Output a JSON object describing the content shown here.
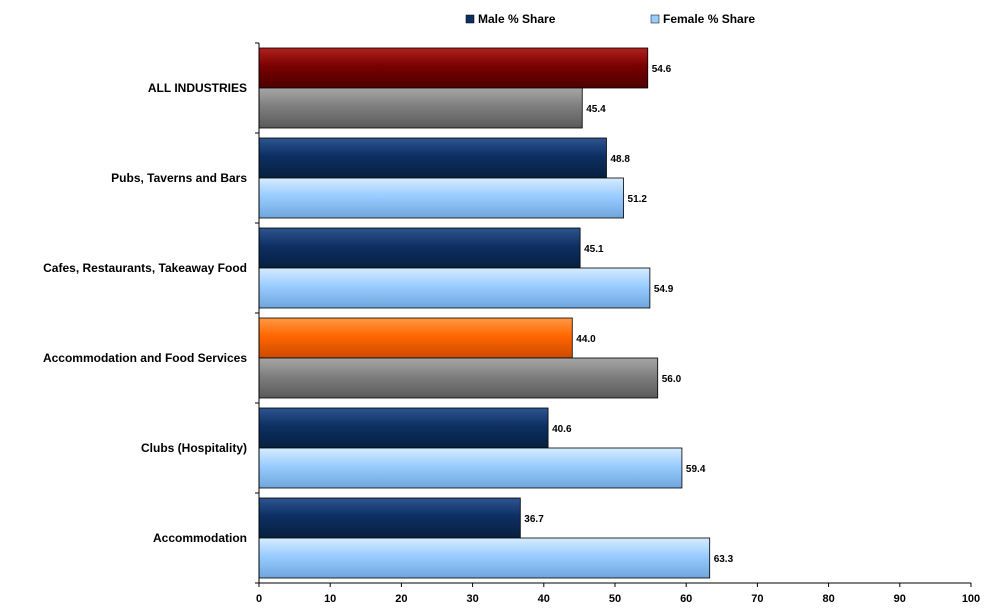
{
  "chart_data": {
    "type": "bar",
    "orientation": "horizontal",
    "categories": [
      "ALL INDUSTRIES",
      "Pubs, Taverns and Bars",
      "Cafes, Restaurants, Takeaway Food",
      "Accommodation and Food Services",
      "Clubs (Hospitality)",
      "Accommodation"
    ],
    "series": [
      {
        "name": "Male % Share",
        "values": [
          54.6,
          48.8,
          45.1,
          44.0,
          40.6,
          36.7
        ],
        "color": "#0d2f63"
      },
      {
        "name": "Female % Share",
        "values": [
          45.4,
          51.2,
          54.9,
          56.0,
          59.4,
          63.3
        ],
        "color": "#99ccff"
      }
    ],
    "highlight_colors": {
      "ALL INDUSTRIES": {
        "Male % Share": "#7a0000",
        "Female % Share": "#7f7f7f"
      },
      "Accommodation and Food Services": {
        "Male % Share": "#ff6600",
        "Female % Share": "#7f7f7f"
      }
    },
    "xlim": [
      0,
      100
    ],
    "xticks": [
      0,
      10,
      20,
      30,
      40,
      50,
      60,
      70,
      80,
      90,
      100
    ],
    "value_label_format": "0.0",
    "legend_position": "top",
    "grid": false
  }
}
